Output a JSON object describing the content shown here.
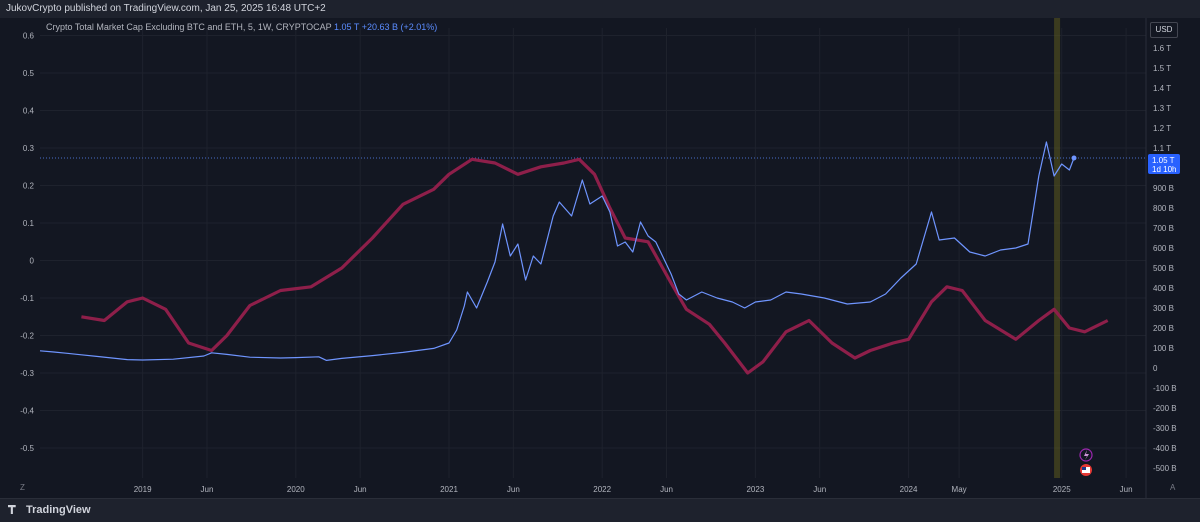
{
  "header": {
    "published": "JukovCrypto published on TradingView.com, Jan 25, 2025 16:48 UTC+2"
  },
  "legend": {
    "title": "Crypto Total Market Cap Excluding BTC and ETH, 5, 1W, CRYPTOCAP",
    "value": "1.05 T",
    "change": "+20.63 B (+2.01%)"
  },
  "footer": {
    "brand": "TradingView",
    "z_label": "Z",
    "a_label": "A"
  },
  "price_label": {
    "value": "1.05 T",
    "countdown": "1d 10h"
  },
  "currency": "USD",
  "colors": {
    "background": "#131722",
    "market_cap_line": "#6f95ff",
    "oscillator_line": "#8e1f4a",
    "highlight_band": "#5c5a1e",
    "price_tag": "#2962ff"
  },
  "chart_data": {
    "type": "line",
    "x_ticks": [
      "2019",
      "Jun",
      "2020",
      "Jun",
      "2021",
      "Jun",
      "2022",
      "Jun",
      "2023",
      "Jun",
      "2024",
      "May",
      "2025",
      "Jun"
    ],
    "left_axis": {
      "ticks": [
        "0.6",
        "0.5",
        "0.4",
        "0.3",
        "0.2",
        "0.1",
        "0",
        "-0.1",
        "-0.2",
        "-0.3",
        "-0.4",
        "-0.5"
      ],
      "range": [
        -0.58,
        0.62
      ]
    },
    "right_axis": {
      "ticks": [
        "1.6 T",
        "1.5 T",
        "1.4 T",
        "1.3 T",
        "1.2 T",
        "1.1 T",
        "1 T",
        "900 B",
        "800 B",
        "700 B",
        "600 B",
        "500 B",
        "400 B",
        "300 B",
        "200 B",
        "100 B",
        "0",
        "-100 B",
        "-200 B",
        "-300 B",
        "-400 B",
        "-500 B"
      ],
      "range_billions": [
        -550,
        1700
      ]
    },
    "x_range": [
      2018.33,
      2025.55
    ],
    "series": [
      {
        "axis": "right",
        "points": [
          [
            2018.33,
            86
          ],
          [
            2018.42,
            80
          ],
          [
            2018.5,
            74
          ],
          [
            2018.6,
            66
          ],
          [
            2018.7,
            58
          ],
          [
            2018.8,
            50
          ],
          [
            2018.9,
            42
          ],
          [
            2019.0,
            40
          ],
          [
            2019.2,
            44
          ],
          [
            2019.4,
            60
          ],
          [
            2019.45,
            76
          ],
          [
            2019.55,
            68
          ],
          [
            2019.7,
            54
          ],
          [
            2019.9,
            50
          ],
          [
            2020.0,
            52
          ],
          [
            2020.15,
            56
          ],
          [
            2020.2,
            38
          ],
          [
            2020.3,
            48
          ],
          [
            2020.5,
            62
          ],
          [
            2020.7,
            78
          ],
          [
            2020.9,
            98
          ],
          [
            2021.0,
            125
          ],
          [
            2021.05,
            190
          ],
          [
            2021.1,
            310
          ],
          [
            2021.12,
            380
          ],
          [
            2021.18,
            300
          ],
          [
            2021.25,
            430
          ],
          [
            2021.3,
            530
          ],
          [
            2021.35,
            720
          ],
          [
            2021.4,
            560
          ],
          [
            2021.45,
            620
          ],
          [
            2021.5,
            440
          ],
          [
            2021.55,
            560
          ],
          [
            2021.6,
            520
          ],
          [
            2021.68,
            760
          ],
          [
            2021.72,
            830
          ],
          [
            2021.8,
            760
          ],
          [
            2021.87,
            940
          ],
          [
            2021.92,
            820
          ],
          [
            2022.0,
            860
          ],
          [
            2022.05,
            780
          ],
          [
            2022.1,
            610
          ],
          [
            2022.15,
            630
          ],
          [
            2022.2,
            580
          ],
          [
            2022.25,
            730
          ],
          [
            2022.3,
            660
          ],
          [
            2022.35,
            630
          ],
          [
            2022.45,
            470
          ],
          [
            2022.5,
            370
          ],
          [
            2022.55,
            340
          ],
          [
            2022.65,
            380
          ],
          [
            2022.75,
            350
          ],
          [
            2022.85,
            330
          ],
          [
            2022.93,
            300
          ],
          [
            2023.0,
            330
          ],
          [
            2023.1,
            340
          ],
          [
            2023.2,
            380
          ],
          [
            2023.3,
            370
          ],
          [
            2023.45,
            350
          ],
          [
            2023.6,
            320
          ],
          [
            2023.75,
            330
          ],
          [
            2023.85,
            370
          ],
          [
            2023.95,
            450
          ],
          [
            2024.05,
            520
          ],
          [
            2024.15,
            780
          ],
          [
            2024.2,
            640
          ],
          [
            2024.3,
            650
          ],
          [
            2024.4,
            580
          ],
          [
            2024.5,
            560
          ],
          [
            2024.6,
            590
          ],
          [
            2024.7,
            600
          ],
          [
            2024.78,
            620
          ],
          [
            2024.85,
            960
          ],
          [
            2024.9,
            1130
          ],
          [
            2024.95,
            960
          ],
          [
            2025.0,
            1020
          ],
          [
            2025.05,
            990
          ],
          [
            2025.08,
            1050
          ]
        ]
      },
      {
        "axis": "left",
        "points": [
          [
            2018.6,
            -0.15
          ],
          [
            2018.75,
            -0.16
          ],
          [
            2018.9,
            -0.11
          ],
          [
            2019.0,
            -0.1
          ],
          [
            2019.15,
            -0.13
          ],
          [
            2019.3,
            -0.22
          ],
          [
            2019.45,
            -0.24
          ],
          [
            2019.55,
            -0.2
          ],
          [
            2019.7,
            -0.12
          ],
          [
            2019.9,
            -0.08
          ],
          [
            2020.1,
            -0.07
          ],
          [
            2020.3,
            -0.02
          ],
          [
            2020.5,
            0.06
          ],
          [
            2020.7,
            0.15
          ],
          [
            2020.9,
            0.19
          ],
          [
            2021.0,
            0.23
          ],
          [
            2021.15,
            0.27
          ],
          [
            2021.3,
            0.26
          ],
          [
            2021.45,
            0.23
          ],
          [
            2021.6,
            0.25
          ],
          [
            2021.75,
            0.26
          ],
          [
            2021.85,
            0.27
          ],
          [
            2021.95,
            0.23
          ],
          [
            2022.05,
            0.14
          ],
          [
            2022.15,
            0.06
          ],
          [
            2022.3,
            0.05
          ],
          [
            2022.45,
            -0.06
          ],
          [
            2022.55,
            -0.13
          ],
          [
            2022.7,
            -0.17
          ],
          [
            2022.8,
            -0.22
          ],
          [
            2022.95,
            -0.3
          ],
          [
            2023.05,
            -0.27
          ],
          [
            2023.2,
            -0.19
          ],
          [
            2023.35,
            -0.16
          ],
          [
            2023.5,
            -0.22
          ],
          [
            2023.65,
            -0.26
          ],
          [
            2023.75,
            -0.24
          ],
          [
            2023.9,
            -0.22
          ],
          [
            2024.0,
            -0.21
          ],
          [
            2024.15,
            -0.11
          ],
          [
            2024.25,
            -0.07
          ],
          [
            2024.35,
            -0.08
          ],
          [
            2024.5,
            -0.16
          ],
          [
            2024.7,
            -0.21
          ],
          [
            2024.85,
            -0.16
          ],
          [
            2024.95,
            -0.13
          ],
          [
            2025.05,
            -0.18
          ],
          [
            2025.15,
            -0.19
          ],
          [
            2025.3,
            -0.16
          ]
        ]
      }
    ],
    "highlight_band_x": [
      2024.95,
      2024.98
    ]
  }
}
